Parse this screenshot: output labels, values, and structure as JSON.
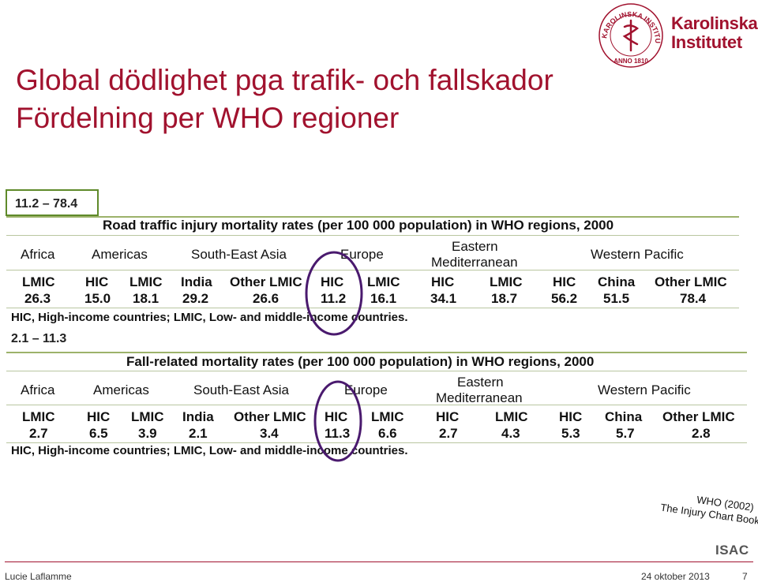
{
  "slide": {
    "title_line1": "Global dödlighet pga trafik- och fallskador",
    "title_line2": "Fördelning per WHO regioner",
    "logo_text_line1": "Karolinska",
    "logo_text_line2": "Institutet",
    "seal_text": "KAROLINSKA INSTITUTET",
    "seal_year": "ANNO 1810",
    "accent_color": "#a1122e",
    "box_color": "#5f8a2a",
    "circle_color": "#4a1a6e"
  },
  "road": {
    "range": "11.2 – 78.4",
    "title": "Road traffic injury mortality rates (per 100 000 population) in WHO regions, 2000",
    "regions": {
      "africa": "Africa",
      "americas": "Americas",
      "sea": "South-East Asia",
      "europe": "Europe",
      "em1": "Eastern",
      "em2": "Mediterranean",
      "wp": "Western Pacific"
    },
    "subs": [
      "LMIC",
      "HIC",
      "LMIC",
      "India",
      "Other LMIC",
      "HIC",
      "LMIC",
      "HIC",
      "LMIC",
      "HIC",
      "China",
      "Other LMIC"
    ],
    "values": [
      "26.3",
      "15.0",
      "18.1",
      "29.2",
      "26.6",
      "11.2",
      "16.1",
      "34.1",
      "18.7",
      "56.2",
      "51.5",
      "78.4"
    ],
    "note": "HIC, High-income countries; LMIC, Low- and middle-income countries."
  },
  "fall": {
    "range": "2.1 – 11.3",
    "title": "Fall-related mortality rates (per 100 000 population) in WHO regions, 2000",
    "regions": {
      "africa": "Africa",
      "americas": "Americas",
      "sea": "South-East Asia",
      "europe": "Europe",
      "em1": "Eastern",
      "em2": "Mediterranean",
      "wp": "Western Pacific"
    },
    "subs": [
      "LMIC",
      "HIC",
      "LMIC",
      "India",
      "Other LMIC",
      "HIC",
      "LMIC",
      "HIC",
      "LMIC",
      "HIC",
      "China",
      "Other LMIC"
    ],
    "values": [
      "2.7",
      "6.5",
      "3.9",
      "2.1",
      "3.4",
      "11.3",
      "6.6",
      "2.7",
      "4.3",
      "5.3",
      "5.7",
      "2.8"
    ],
    "note": "HIC, High-income countries; LMIC, Low- and middle-income countries."
  },
  "source": {
    "line1": "WHO (2002)",
    "line2": "The Injury Chart Book",
    "org": "ISAC"
  },
  "footer": {
    "author": "Lucie Laflamme",
    "date": "24 oktober 2013",
    "page": "7"
  }
}
